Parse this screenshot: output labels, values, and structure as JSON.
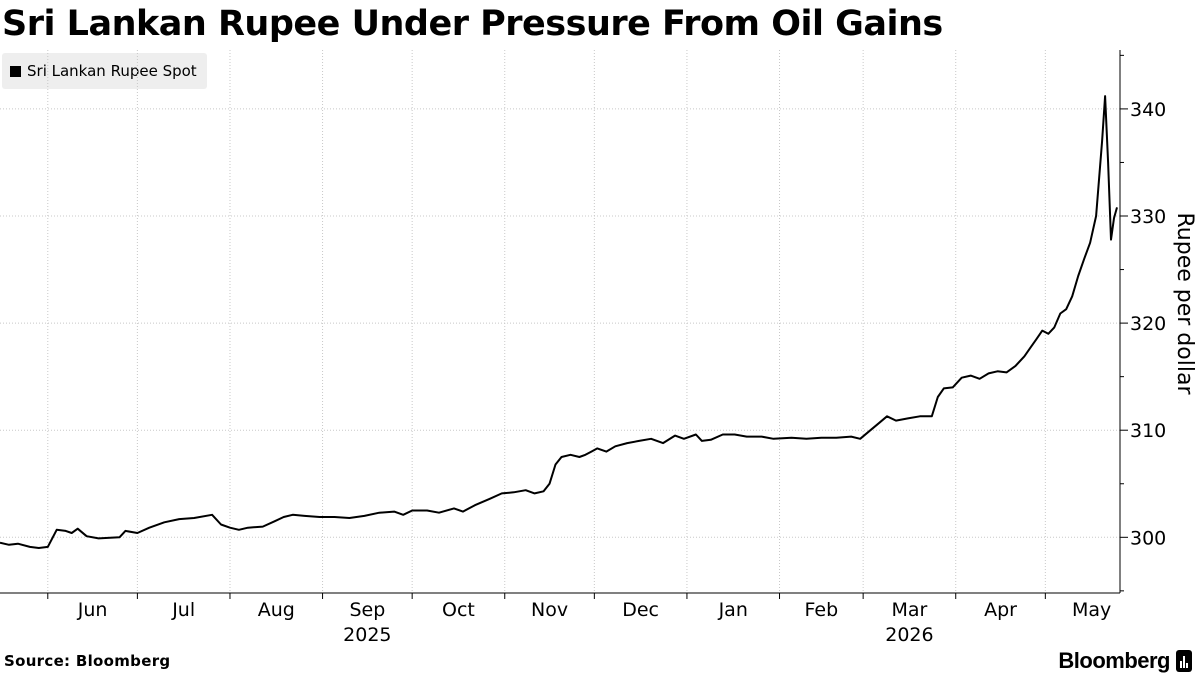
{
  "header": {
    "title": "Sri Lankan Rupee Under Pressure From Oil Gains"
  },
  "legend": {
    "label": "Sri Lankan Rupee Spot",
    "color": "#000000"
  },
  "footer": {
    "source": "Source: Bloomberg",
    "brand": "Bloomberg",
    "brand_icon": "bloomberg-chart-icon"
  },
  "chart_data": {
    "type": "line",
    "title": "Sri Lankan Rupee Under Pressure From Oil Gains",
    "ylabel": "Rupee per dollar",
    "xlabel": "",
    "y_axis_position": "right",
    "grid": {
      "horizontal": true,
      "vertical": true,
      "style": "dotted"
    },
    "legend_position": "top-left",
    "ylim": [
      294.8,
      345.5
    ],
    "xlim": [
      "2025-05-16",
      "2026-05-26"
    ],
    "y_ticks": [
      300,
      310,
      320,
      330,
      340
    ],
    "x_ticks": [
      {
        "date": "2025-06-01",
        "label": "Jun"
      },
      {
        "date": "2025-07-01",
        "label": "Jul"
      },
      {
        "date": "2025-08-01",
        "label": "Aug"
      },
      {
        "date": "2025-09-01",
        "label": "Sep",
        "year": "2025"
      },
      {
        "date": "2025-10-01",
        "label": "Oct"
      },
      {
        "date": "2025-11-01",
        "label": "Nov"
      },
      {
        "date": "2025-12-01",
        "label": "Dec"
      },
      {
        "date": "2026-01-01",
        "label": "Jan"
      },
      {
        "date": "2026-02-01",
        "label": "Feb"
      },
      {
        "date": "2026-03-01",
        "label": "Mar",
        "year": "2026"
      },
      {
        "date": "2026-04-01",
        "label": "Apr"
      },
      {
        "date": "2026-05-01",
        "label": "May"
      }
    ],
    "series": [
      {
        "name": "Sri Lankan Rupee Spot",
        "color": "#000000",
        "points": [
          [
            "2025-05-16",
            299.5
          ],
          [
            "2025-05-19",
            299.3
          ],
          [
            "2025-05-22",
            299.4
          ],
          [
            "2025-05-26",
            299.1
          ],
          [
            "2025-05-29",
            299.0
          ],
          [
            "2025-06-01",
            299.1
          ],
          [
            "2025-06-04",
            300.7
          ],
          [
            "2025-06-07",
            300.6
          ],
          [
            "2025-06-09",
            300.4
          ],
          [
            "2025-06-11",
            300.8
          ],
          [
            "2025-06-14",
            300.1
          ],
          [
            "2025-06-18",
            299.9
          ],
          [
            "2025-06-25",
            300.0
          ],
          [
            "2025-06-27",
            300.6
          ],
          [
            "2025-07-01",
            300.4
          ],
          [
            "2025-07-05",
            300.9
          ],
          [
            "2025-07-10",
            301.4
          ],
          [
            "2025-07-15",
            301.7
          ],
          [
            "2025-07-20",
            301.8
          ],
          [
            "2025-07-26",
            302.1
          ],
          [
            "2025-07-29",
            301.2
          ],
          [
            "2025-08-01",
            300.9
          ],
          [
            "2025-08-04",
            300.7
          ],
          [
            "2025-08-07",
            300.9
          ],
          [
            "2025-08-12",
            301.0
          ],
          [
            "2025-08-16",
            301.5
          ],
          [
            "2025-08-19",
            301.9
          ],
          [
            "2025-08-22",
            302.1
          ],
          [
            "2025-08-26",
            302.0
          ],
          [
            "2025-08-31",
            301.9
          ],
          [
            "2025-09-05",
            301.9
          ],
          [
            "2025-09-10",
            301.8
          ],
          [
            "2025-09-15",
            302.0
          ],
          [
            "2025-09-20",
            302.3
          ],
          [
            "2025-09-25",
            302.4
          ],
          [
            "2025-09-28",
            302.1
          ],
          [
            "2025-10-01",
            302.5
          ],
          [
            "2025-10-06",
            302.5
          ],
          [
            "2025-10-10",
            302.3
          ],
          [
            "2025-10-15",
            302.7
          ],
          [
            "2025-10-18",
            302.4
          ],
          [
            "2025-10-22",
            303.0
          ],
          [
            "2025-10-27",
            303.6
          ],
          [
            "2025-10-31",
            304.1
          ],
          [
            "2025-11-04",
            304.2
          ],
          [
            "2025-11-08",
            304.4
          ],
          [
            "2025-11-11",
            304.1
          ],
          [
            "2025-11-14",
            304.3
          ],
          [
            "2025-11-16",
            305.0
          ],
          [
            "2025-11-18",
            306.8
          ],
          [
            "2025-11-20",
            307.5
          ],
          [
            "2025-11-23",
            307.7
          ],
          [
            "2025-11-26",
            307.5
          ],
          [
            "2025-11-28",
            307.7
          ],
          [
            "2025-11-30",
            308.0
          ],
          [
            "2025-12-02",
            308.3
          ],
          [
            "2025-12-05",
            308.0
          ],
          [
            "2025-12-08",
            308.5
          ],
          [
            "2025-12-12",
            308.8
          ],
          [
            "2025-12-16",
            309.0
          ],
          [
            "2025-12-20",
            309.2
          ],
          [
            "2025-12-24",
            308.8
          ],
          [
            "2025-12-28",
            309.5
          ],
          [
            "2025-12-31",
            309.2
          ],
          [
            "2026-01-04",
            309.6
          ],
          [
            "2026-01-06",
            309.0
          ],
          [
            "2026-01-09",
            309.1
          ],
          [
            "2026-01-13",
            309.6
          ],
          [
            "2026-01-17",
            309.6
          ],
          [
            "2026-01-21",
            309.4
          ],
          [
            "2026-01-26",
            309.4
          ],
          [
            "2026-01-30",
            309.2
          ],
          [
            "2026-02-05",
            309.3
          ],
          [
            "2026-02-10",
            309.2
          ],
          [
            "2026-02-15",
            309.3
          ],
          [
            "2026-02-20",
            309.3
          ],
          [
            "2026-02-25",
            309.4
          ],
          [
            "2026-02-28",
            309.2
          ],
          [
            "2026-03-03",
            309.9
          ],
          [
            "2026-03-06",
            310.6
          ],
          [
            "2026-03-09",
            311.3
          ],
          [
            "2026-03-12",
            310.9
          ],
          [
            "2026-03-16",
            311.1
          ],
          [
            "2026-03-20",
            311.3
          ],
          [
            "2026-03-24",
            311.3
          ],
          [
            "2026-03-26",
            313.1
          ],
          [
            "2026-03-28",
            313.9
          ],
          [
            "2026-03-31",
            314.0
          ],
          [
            "2026-04-03",
            314.9
          ],
          [
            "2026-04-06",
            315.1
          ],
          [
            "2026-04-09",
            314.8
          ],
          [
            "2026-04-12",
            315.3
          ],
          [
            "2026-04-15",
            315.5
          ],
          [
            "2026-04-18",
            315.4
          ],
          [
            "2026-04-21",
            316.0
          ],
          [
            "2026-04-24",
            316.9
          ],
          [
            "2026-04-26",
            317.7
          ],
          [
            "2026-04-28",
            318.5
          ],
          [
            "2026-04-30",
            319.3
          ],
          [
            "2026-05-02",
            319.0
          ],
          [
            "2026-05-04",
            319.6
          ],
          [
            "2026-05-06",
            320.9
          ],
          [
            "2026-05-08",
            321.3
          ],
          [
            "2026-05-10",
            322.5
          ],
          [
            "2026-05-12",
            324.4
          ],
          [
            "2026-05-14",
            326.0
          ],
          [
            "2026-05-16",
            327.5
          ],
          [
            "2026-05-18",
            330.0
          ],
          [
            "2026-05-19",
            333.5
          ],
          [
            "2026-05-20",
            337.0
          ],
          [
            "2026-05-21",
            341.2
          ],
          [
            "2026-05-22",
            335.0
          ],
          [
            "2026-05-23",
            327.8
          ],
          [
            "2026-05-24",
            329.8
          ],
          [
            "2026-05-25",
            330.8
          ]
        ]
      }
    ]
  }
}
